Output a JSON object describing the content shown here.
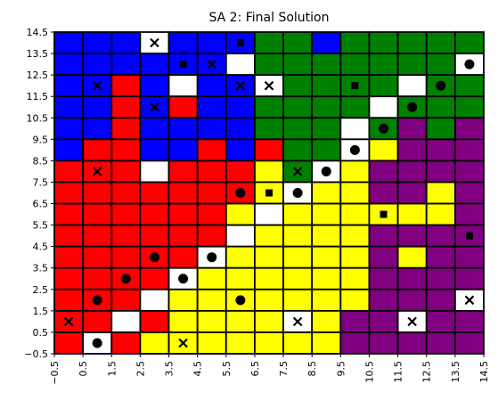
{
  "chart_data": {
    "type": "heatmap",
    "title": "SA 2: Final Solution",
    "xlabel": "",
    "ylabel": "",
    "xlim": [
      -0.5,
      14.5
    ],
    "ylim": [
      -0.5,
      14.5
    ],
    "x_ticks": [
      "−0.5",
      "0.5",
      "1.5",
      "2.5",
      "3.5",
      "4.5",
      "5.5",
      "6.5",
      "7.5",
      "8.5",
      "9.5",
      "10.5",
      "11.5",
      "12.5",
      "13.5",
      "14.5"
    ],
    "y_ticks": [
      "−0.5",
      "0.5",
      "1.5",
      "2.5",
      "3.5",
      "4.5",
      "5.5",
      "6.5",
      "7.5",
      "8.5",
      "9.5",
      "10.5",
      "11.5",
      "12.5",
      "13.5",
      "14.5"
    ],
    "grid": false,
    "palette": {
      "B": "#0000ff",
      "R": "#ff0000",
      "G": "#008000",
      "P": "#800080",
      "Y": "#ffff00",
      "W": "#ffffff"
    },
    "grid_rows_top_to_bottom": [
      "BBBWBBBGGBGGGGG",
      "BBBBBBWGGGGGGGW",
      "BBRBWBBWGGGGWGG",
      "BBRBRBBGGGGWGGG",
      "BBRBBBBGGGWGPGP",
      "BRRBBRBRGGWYPPP",
      "RRRWRRRYGWYPPPP",
      "RRRRRRRYWYYPPYP",
      "RRRRRRYWYYYYYYP",
      "RRRRRRWYYYYPPPP",
      "RRRRRWYYYYYPYPP",
      "RRRRWYYYYYYPPPP",
      "RRRWYYYYYYYPPPW",
      "RRWRYYYYWYPPWPP",
      "RWRYYYYYYYPPPPP"
    ],
    "markers": [
      {
        "x": 0,
        "y": 1,
        "symbol": "x"
      },
      {
        "x": 1,
        "y": 0,
        "symbol": "circle"
      },
      {
        "x": 1,
        "y": 2,
        "symbol": "circle"
      },
      {
        "x": 1,
        "y": 8,
        "symbol": "x"
      },
      {
        "x": 1,
        "y": 12,
        "symbol": "x"
      },
      {
        "x": 2,
        "y": 3,
        "symbol": "circle"
      },
      {
        "x": 3,
        "y": 4,
        "symbol": "circle"
      },
      {
        "x": 3,
        "y": 11,
        "symbol": "x"
      },
      {
        "x": 3,
        "y": 14,
        "symbol": "x"
      },
      {
        "x": 4,
        "y": 0,
        "symbol": "x"
      },
      {
        "x": 4,
        "y": 3,
        "symbol": "circle"
      },
      {
        "x": 4,
        "y": 13,
        "symbol": "square"
      },
      {
        "x": 5,
        "y": 4,
        "symbol": "circle"
      },
      {
        "x": 5,
        "y": 13,
        "symbol": "x"
      },
      {
        "x": 6,
        "y": 2,
        "symbol": "circle"
      },
      {
        "x": 6,
        "y": 7,
        "symbol": "circle"
      },
      {
        "x": 6,
        "y": 12,
        "symbol": "x"
      },
      {
        "x": 6,
        "y": 14,
        "symbol": "square"
      },
      {
        "x": 7,
        "y": 7,
        "symbol": "square"
      },
      {
        "x": 7,
        "y": 12,
        "symbol": "x"
      },
      {
        "x": 8,
        "y": 1,
        "symbol": "x"
      },
      {
        "x": 8,
        "y": 7,
        "symbol": "circle"
      },
      {
        "x": 8,
        "y": 8,
        "symbol": "x"
      },
      {
        "x": 9,
        "y": 8,
        "symbol": "circle"
      },
      {
        "x": 10,
        "y": 9,
        "symbol": "circle"
      },
      {
        "x": 10,
        "y": 12,
        "symbol": "square"
      },
      {
        "x": 11,
        "y": 6,
        "symbol": "square"
      },
      {
        "x": 11,
        "y": 10,
        "symbol": "circle"
      },
      {
        "x": 12,
        "y": 1,
        "symbol": "x"
      },
      {
        "x": 12,
        "y": 11,
        "symbol": "circle"
      },
      {
        "x": 13,
        "y": 12,
        "symbol": "circle"
      },
      {
        "x": 14,
        "y": 2,
        "symbol": "x"
      },
      {
        "x": 14,
        "y": 5,
        "symbol": "square"
      },
      {
        "x": 14,
        "y": 13,
        "symbol": "circle"
      }
    ],
    "lines": [
      {
        "color": "#0000ff",
        "points": [
          [
            -0.5,
            -0.5
          ],
          [
            9.5,
            -0.5
          ]
        ]
      },
      {
        "color": "#008000",
        "points": [
          [
            9.5,
            -0.5
          ],
          [
            14.5,
            -0.5
          ]
        ]
      }
    ]
  }
}
